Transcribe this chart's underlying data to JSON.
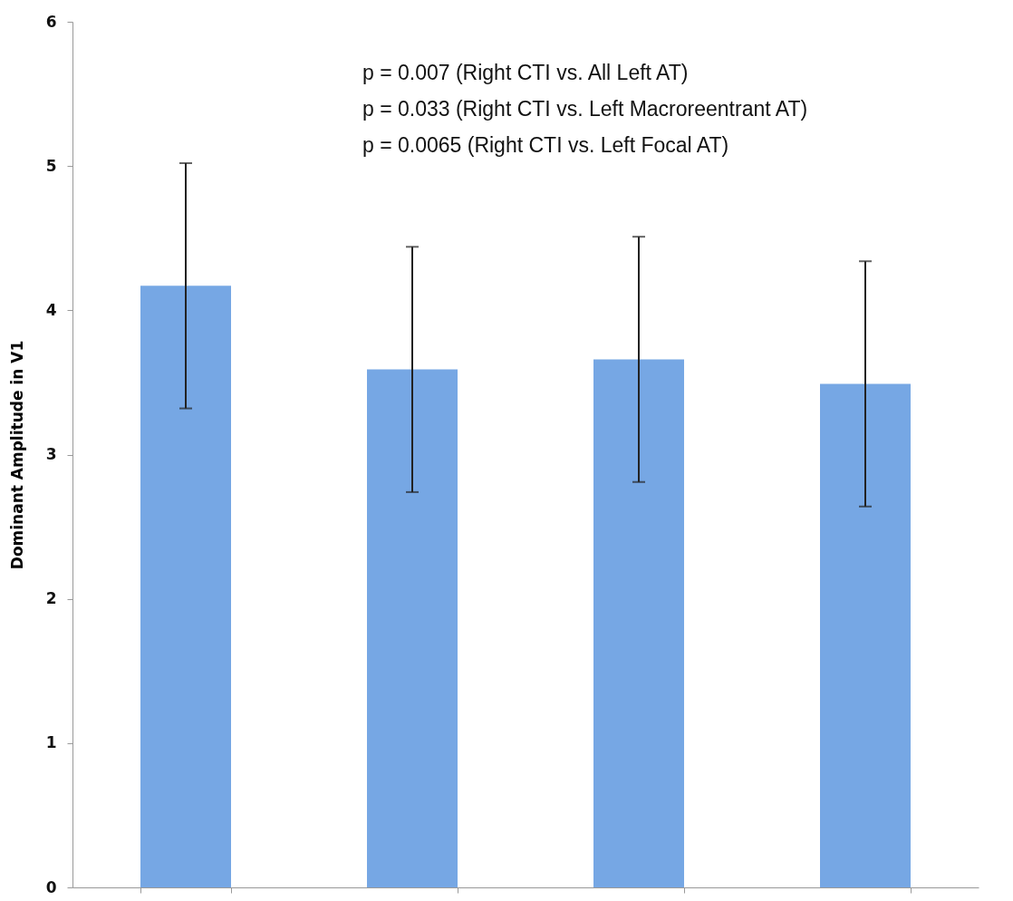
{
  "chart_data": {
    "type": "bar",
    "ylabel": "Dominant Amplitude in V1",
    "categories": [
      null,
      null,
      null,
      null
    ],
    "values": [
      4.17,
      3.59,
      3.66,
      3.49
    ],
    "errors": [
      0.85,
      0.85,
      0.85,
      0.85
    ],
    "color": "#76a7e4",
    "ylim": [
      0,
      6
    ],
    "yticks": [
      0,
      1,
      2,
      3,
      4,
      5,
      6
    ],
    "grid": false,
    "annotations": [
      "p = 0.007 (Right CTI vs. All Left AT)",
      "p = 0.033 (Right CTI vs. Left Macroreentrant AT)",
      "p = 0.0065 (Right CTI vs. Left Focal AT)"
    ]
  }
}
